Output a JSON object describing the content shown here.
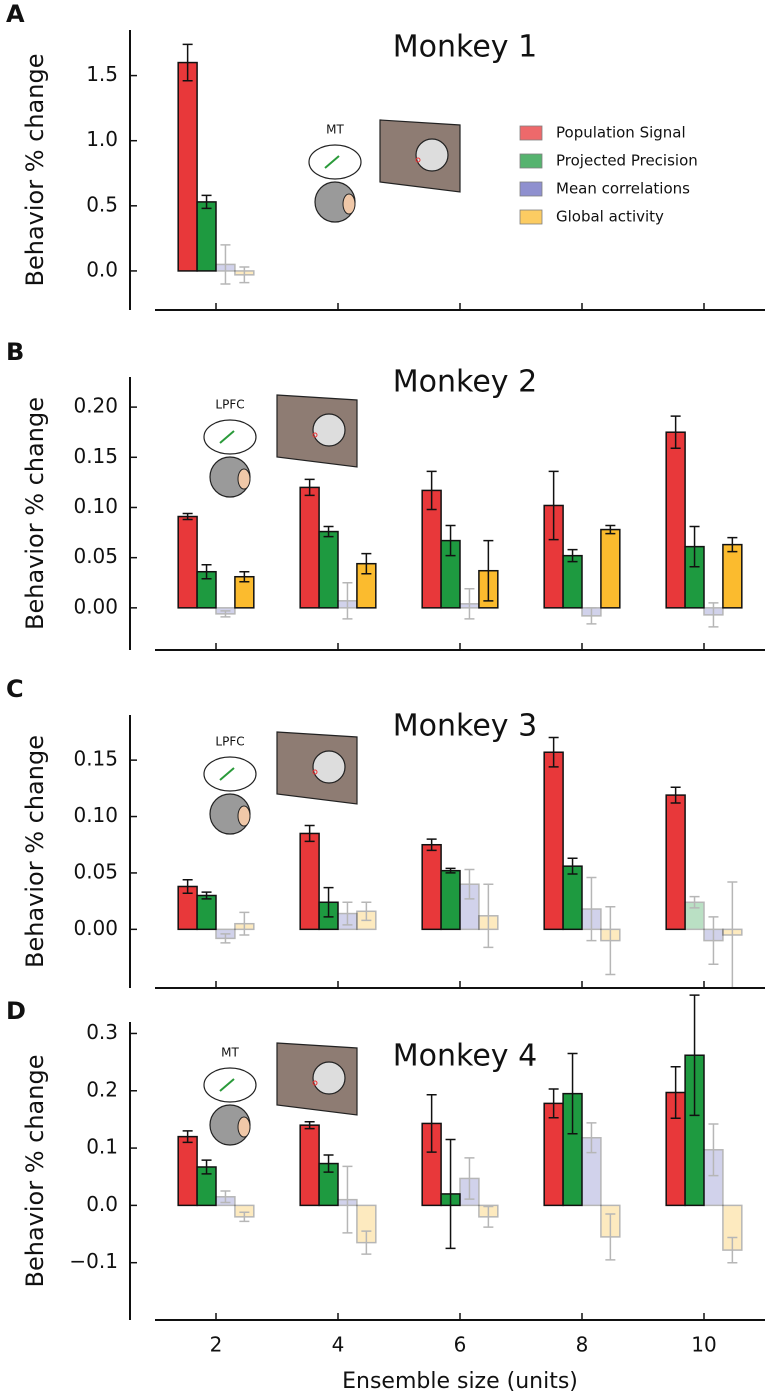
{
  "chart_data": [
    {
      "type": "bar",
      "panel": "A",
      "title": "Monkey 1",
      "y_label": "Behavior % change",
      "inset_label": "MT",
      "legend": "upper right",
      "x": [
        2
      ],
      "xlim": [
        1,
        11
      ],
      "xticks": [
        2,
        4,
        6,
        8,
        10
      ],
      "show_xtick_labels": false,
      "ylim": [
        -0.3,
        1.85
      ],
      "yticks": [
        {
          "value": 0,
          "label": "0.0"
        },
        0.5,
        {
          "value": 1,
          "label": "1.0"
        },
        1.5
      ],
      "series": [
        {
          "name": "Population Signal",
          "color": "#e8383a",
          "values": [
            1.6
          ],
          "errors": [
            0.14
          ],
          "alpha": [
            1
          ]
        },
        {
          "name": "Projected Precision",
          "color": "#1e9a40",
          "values": [
            0.53
          ],
          "errors": [
            0.05
          ],
          "alpha": [
            1
          ]
        },
        {
          "name": "Mean correlations",
          "color": "#6a6cc0",
          "values": [
            0.05
          ],
          "errors": [
            0.15
          ],
          "alpha": [
            0.3
          ]
        },
        {
          "name": "Global activity",
          "color": "#fbbb2e",
          "values": [
            -0.03
          ],
          "errors": [
            0.06
          ],
          "alpha": [
            0.3
          ]
        }
      ]
    },
    {
      "type": "bar",
      "panel": "B",
      "title": "Monkey 2",
      "y_label": "Behavior % change",
      "inset_label": "LPFC",
      "x": [
        2,
        4,
        6,
        8,
        10
      ],
      "xlim": [
        1,
        11
      ],
      "xticks": [
        2,
        4,
        6,
        8,
        10
      ],
      "show_xtick_labels": false,
      "ylim": [
        -0.042,
        0.23
      ],
      "yticks": [
        {
          "value": 0,
          "label": "0.00"
        },
        0.05,
        {
          "value": 0.1,
          "label": "0.10"
        },
        0.15,
        {
          "value": 0.2,
          "label": "0.20"
        }
      ],
      "series": [
        {
          "color": "#e8383a",
          "values": [
            0.091,
            0.12,
            0.117,
            0.102,
            0.175
          ],
          "errors": [
            0.003,
            0.008,
            0.019,
            0.034,
            0.016
          ],
          "alpha": [
            1,
            1,
            1,
            1,
            1
          ]
        },
        {
          "color": "#1e9a40",
          "values": [
            0.036,
            0.076,
            0.067,
            0.052,
            0.061
          ],
          "errors": [
            0.007,
            0.005,
            0.015,
            0.006,
            0.02
          ],
          "alpha": [
            1,
            1,
            1,
            1,
            1
          ]
        },
        {
          "color": "#6a6cc0",
          "values": [
            -0.006,
            0.007,
            0.004,
            -0.008,
            -0.007
          ],
          "errors": [
            0.003,
            0.018,
            0.015,
            0.008,
            0.012
          ],
          "alpha": [
            0.3,
            0.3,
            0.3,
            0.3,
            0.3
          ]
        },
        {
          "color": "#fbbb2e",
          "values": [
            0.031,
            0.044,
            0.037,
            0.078,
            0.063
          ],
          "errors": [
            0.005,
            0.01,
            0.03,
            0.004,
            0.007
          ],
          "alpha": [
            1,
            1,
            1,
            1,
            1
          ]
        }
      ]
    },
    {
      "type": "bar",
      "panel": "C",
      "title": "Monkey 3",
      "y_label": "Behavior % change",
      "inset_label": "LPFC",
      "x": [
        2,
        4,
        6,
        8,
        10
      ],
      "xlim": [
        1,
        11
      ],
      "xticks": [
        2,
        4,
        6,
        8,
        10
      ],
      "show_xtick_labels": false,
      "ylim": [
        -0.052,
        0.19
      ],
      "yticks": [
        {
          "value": 0,
          "label": "0.00"
        },
        0.05,
        {
          "value": 0.1,
          "label": "0.10"
        },
        0.15
      ],
      "series": [
        {
          "color": "#e8383a",
          "values": [
            0.038,
            0.085,
            0.075,
            0.157,
            0.119
          ],
          "errors": [
            0.006,
            0.007,
            0.005,
            0.013,
            0.007
          ],
          "alpha": [
            1,
            1,
            1,
            1,
            1
          ]
        },
        {
          "color": "#1e9a40",
          "values": [
            0.03,
            0.024,
            0.052,
            0.056,
            0.024
          ],
          "errors": [
            0.003,
            0.013,
            0.002,
            0.007,
            0.005
          ],
          "alpha": [
            1,
            1,
            1,
            1,
            0.3
          ]
        },
        {
          "color": "#6a6cc0",
          "values": [
            -0.008,
            0.014,
            0.04,
            0.018,
            -0.01
          ],
          "errors": [
            0.004,
            0.01,
            0.013,
            0.028,
            0.021
          ],
          "alpha": [
            0.3,
            0.3,
            0.3,
            0.3,
            0.3
          ]
        },
        {
          "color": "#fbbb2e",
          "values": [
            0.005,
            0.016,
            0.012,
            -0.01,
            -0.005
          ],
          "errors": [
            0.01,
            0.008,
            0.028,
            0.03,
            0.047
          ],
          "alpha": [
            0.3,
            0.3,
            0.3,
            0.3,
            0.3
          ]
        }
      ]
    },
    {
      "type": "bar",
      "panel": "D",
      "title": "Monkey 4",
      "y_label": "Behavior % change",
      "inset_label": "MT",
      "x_label": "Ensemble size (units)",
      "x": [
        2,
        4,
        6,
        8,
        10
      ],
      "xlim": [
        1,
        11
      ],
      "xticks": [
        2,
        4,
        6,
        8,
        10
      ],
      "show_xtick_labels": true,
      "ylim": [
        -0.2,
        0.32
      ],
      "yticks": [
        {
          "value": -0.1,
          "label": "−0.1"
        },
        {
          "value": 0,
          "label": "0.0"
        },
        0.1,
        0.2,
        0.3
      ],
      "series": [
        {
          "color": "#e8383a",
          "values": [
            0.12,
            0.14,
            0.143,
            0.178,
            0.197
          ],
          "errors": [
            0.01,
            0.006,
            0.05,
            0.025,
            0.045
          ],
          "alpha": [
            1,
            1,
            1,
            1,
            1
          ]
        },
        {
          "color": "#1e9a40",
          "values": [
            0.067,
            0.073,
            0.02,
            0.195,
            0.262
          ],
          "errors": [
            0.012,
            0.015,
            0.095,
            0.07,
            0.105
          ],
          "alpha": [
            1,
            1,
            1,
            1,
            1
          ]
        },
        {
          "color": "#6a6cc0",
          "values": [
            0.015,
            0.01,
            0.047,
            0.118,
            0.097
          ],
          "errors": [
            0.01,
            0.058,
            0.036,
            0.026,
            0.045
          ],
          "alpha": [
            0.3,
            0.3,
            0.3,
            0.3,
            0.3
          ]
        },
        {
          "color": "#fbbb2e",
          "values": [
            -0.02,
            -0.065,
            -0.02,
            -0.055,
            -0.078
          ],
          "errors": [
            0.008,
            0.02,
            0.018,
            0.04,
            0.022
          ],
          "alpha": [
            0.3,
            0.3,
            0.3,
            0.3,
            0.3
          ]
        }
      ]
    }
  ]
}
